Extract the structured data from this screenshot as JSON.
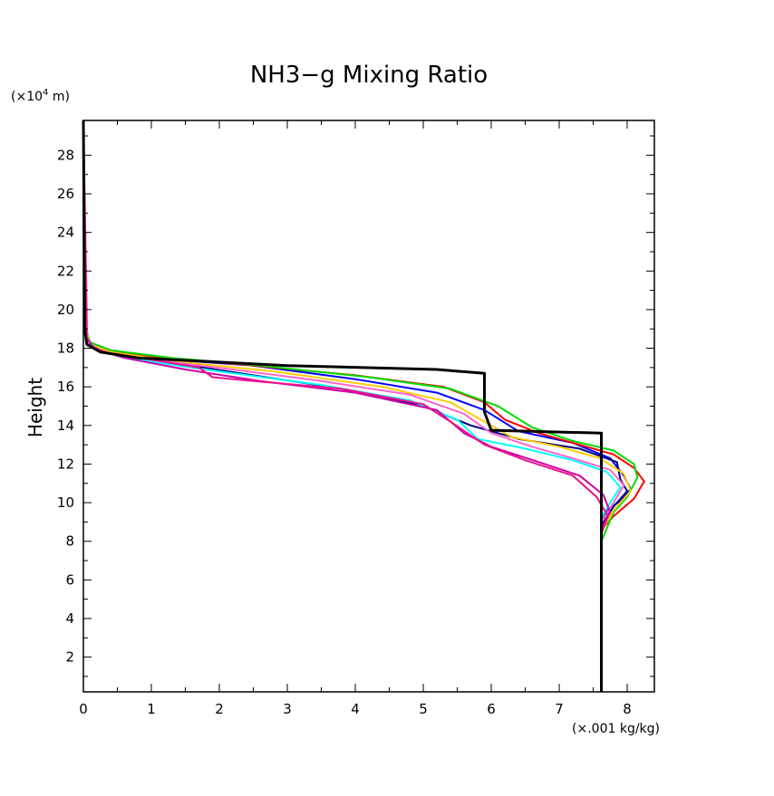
{
  "chart_data": {
    "type": "line",
    "title": "NH3−g Mixing Ratio",
    "ylabel": "Height",
    "y_unit_prefix": "(×10",
    "y_unit_exp": "4",
    "y_unit_suffix": " m)",
    "x_unit_label": "(×.001 kg/kg)",
    "xlim": [
      0,
      8.4
    ],
    "ylim": [
      0.2,
      29.8
    ],
    "x_ticks": [
      0,
      1,
      2,
      3,
      4,
      5,
      6,
      7,
      8
    ],
    "x_tick_labels": [
      "0",
      "1",
      "2",
      "3",
      "4",
      "5",
      "6",
      "7",
      "8"
    ],
    "y_ticks": [
      2,
      4,
      6,
      8,
      10,
      12,
      14,
      16,
      18,
      20,
      22,
      24,
      26,
      28
    ],
    "y_tick_labels": [
      "2",
      "4",
      "6",
      "8",
      "10",
      "12",
      "14",
      "16",
      "18",
      "20",
      "22",
      "24",
      "26",
      "28"
    ],
    "grid": false,
    "legend": "none",
    "series": [
      {
        "color": "#000000",
        "width": 3,
        "points": [
          [
            7.62,
            0.2
          ],
          [
            7.62,
            8.0
          ],
          [
            7.62,
            13.6
          ],
          [
            6.0,
            13.75
          ],
          [
            5.9,
            14.7
          ],
          [
            5.9,
            16.7
          ],
          [
            5.2,
            16.9
          ],
          [
            3.0,
            17.1
          ],
          [
            0.8,
            17.5
          ],
          [
            0.25,
            17.8
          ],
          [
            0.05,
            18.2
          ],
          [
            0.02,
            19.0
          ],
          [
            0.0,
            29.8
          ]
        ]
      },
      {
        "color": "#0000ff",
        "width": 2,
        "points": [
          [
            7.62,
            0.2
          ],
          [
            7.62,
            9.0
          ],
          [
            7.7,
            9.6
          ],
          [
            7.9,
            10.1
          ],
          [
            8.05,
            10.7
          ],
          [
            7.95,
            11.4
          ],
          [
            7.75,
            12.3
          ],
          [
            7.2,
            13.1
          ],
          [
            6.4,
            13.7
          ],
          [
            5.9,
            14.8
          ],
          [
            5.2,
            15.7
          ],
          [
            4.0,
            16.4
          ],
          [
            2.5,
            17.1
          ],
          [
            1.3,
            17.4
          ],
          [
            0.4,
            17.8
          ],
          [
            0.1,
            18.2
          ],
          [
            0.02,
            19.0
          ],
          [
            0.0,
            29.8
          ]
        ]
      },
      {
        "color": "#000080",
        "width": 2,
        "points": [
          [
            7.62,
            0.2
          ],
          [
            7.62,
            8.8
          ],
          [
            7.8,
            9.8
          ],
          [
            8.0,
            10.6
          ],
          [
            7.9,
            11.2
          ],
          [
            7.85,
            12.1
          ],
          [
            7.3,
            12.8
          ],
          [
            6.4,
            13.3
          ],
          [
            5.7,
            14.0
          ],
          [
            5.0,
            15.0
          ],
          [
            3.8,
            15.9
          ],
          [
            2.5,
            16.6
          ],
          [
            1.2,
            17.3
          ],
          [
            0.4,
            17.8
          ],
          [
            0.08,
            18.3
          ],
          [
            0.01,
            19.2
          ],
          [
            0.0,
            29.8
          ]
        ]
      },
      {
        "color": "#ff0000",
        "width": 2,
        "points": [
          [
            7.62,
            0.2
          ],
          [
            7.62,
            8.6
          ],
          [
            7.8,
            9.3
          ],
          [
            8.1,
            10.2
          ],
          [
            8.25,
            11.1
          ],
          [
            8.1,
            11.8
          ],
          [
            7.8,
            12.5
          ],
          [
            7.3,
            13.0
          ],
          [
            6.7,
            13.6
          ],
          [
            6.2,
            14.3
          ],
          [
            5.9,
            15.2
          ],
          [
            5.3,
            16.0
          ],
          [
            4.0,
            16.6
          ],
          [
            2.5,
            17.1
          ],
          [
            1.2,
            17.5
          ],
          [
            0.4,
            17.9
          ],
          [
            0.1,
            18.3
          ],
          [
            0.02,
            19.0
          ],
          [
            0.0,
            29.8
          ]
        ]
      },
      {
        "color": "#00dd00",
        "width": 2,
        "points": [
          [
            7.62,
            0.2
          ],
          [
            7.62,
            8.0
          ],
          [
            7.8,
            9.5
          ],
          [
            8.0,
            10.3
          ],
          [
            8.15,
            11.3
          ],
          [
            8.1,
            12.0
          ],
          [
            7.8,
            12.7
          ],
          [
            7.2,
            13.2
          ],
          [
            6.6,
            13.9
          ],
          [
            6.1,
            15.0
          ],
          [
            5.4,
            15.9
          ],
          [
            4.2,
            16.5
          ],
          [
            2.6,
            17.1
          ],
          [
            1.3,
            17.5
          ],
          [
            0.4,
            17.9
          ],
          [
            0.1,
            18.3
          ],
          [
            0.02,
            19.2
          ],
          [
            0.0,
            29.8
          ]
        ]
      },
      {
        "color": "#ffcc00",
        "width": 2,
        "points": [
          [
            7.62,
            0.2
          ],
          [
            7.62,
            8.5
          ],
          [
            7.8,
            9.6
          ],
          [
            8.05,
            10.6
          ],
          [
            7.95,
            11.5
          ],
          [
            7.6,
            12.3
          ],
          [
            7.0,
            12.9
          ],
          [
            6.3,
            13.4
          ],
          [
            5.9,
            14.2
          ],
          [
            5.4,
            15.2
          ],
          [
            4.4,
            16.0
          ],
          [
            2.8,
            16.8
          ],
          [
            1.4,
            17.3
          ],
          [
            0.4,
            17.8
          ],
          [
            0.1,
            18.2
          ],
          [
            0.02,
            19.1
          ],
          [
            0.0,
            29.8
          ]
        ]
      },
      {
        "color": "#00ffff",
        "width": 2,
        "points": [
          [
            7.62,
            0.2
          ],
          [
            7.62,
            9.2
          ],
          [
            7.75,
            10.0
          ],
          [
            7.9,
            10.8
          ],
          [
            7.7,
            11.6
          ],
          [
            7.2,
            12.2
          ],
          [
            6.5,
            12.8
          ],
          [
            5.8,
            13.3
          ],
          [
            5.5,
            14.3
          ],
          [
            4.8,
            15.3
          ],
          [
            3.5,
            16.1
          ],
          [
            2.0,
            16.8
          ],
          [
            1.0,
            17.3
          ],
          [
            0.3,
            17.8
          ],
          [
            0.06,
            18.3
          ],
          [
            0.01,
            19.2
          ],
          [
            0.0,
            29.8
          ]
        ]
      },
      {
        "color": "#ff66cc",
        "width": 2,
        "points": [
          [
            7.62,
            0.2
          ],
          [
            7.62,
            9.0
          ],
          [
            7.8,
            10.0
          ],
          [
            7.95,
            10.9
          ],
          [
            7.75,
            11.7
          ],
          [
            7.2,
            12.3
          ],
          [
            6.6,
            12.9
          ],
          [
            6.0,
            13.6
          ],
          [
            5.6,
            14.6
          ],
          [
            4.8,
            15.6
          ],
          [
            3.5,
            16.3
          ],
          [
            2.2,
            16.9
          ],
          [
            1.0,
            17.4
          ],
          [
            0.3,
            17.8
          ],
          [
            0.06,
            18.3
          ],
          [
            0.0,
            29.8
          ]
        ]
      },
      {
        "color": "#cc00aa",
        "width": 2,
        "points": [
          [
            7.62,
            0.2
          ],
          [
            7.62,
            8.6
          ],
          [
            7.75,
            9.5
          ],
          [
            7.65,
            10.4
          ],
          [
            7.3,
            11.4
          ],
          [
            6.7,
            12.1
          ],
          [
            6.0,
            12.9
          ],
          [
            5.6,
            13.6
          ],
          [
            5.2,
            14.8
          ],
          [
            4.0,
            15.7
          ],
          [
            2.6,
            16.3
          ],
          [
            1.5,
            16.9
          ],
          [
            0.6,
            17.5
          ],
          [
            0.15,
            18.0
          ],
          [
            0.02,
            18.7
          ],
          [
            0.0,
            29.8
          ]
        ]
      },
      {
        "color": "#ee1188",
        "width": 2,
        "points": [
          [
            7.62,
            0.2
          ],
          [
            7.62,
            8.4
          ],
          [
            7.72,
            9.3
          ],
          [
            7.55,
            10.3
          ],
          [
            7.2,
            11.4
          ],
          [
            6.5,
            12.2
          ],
          [
            5.9,
            13.0
          ],
          [
            5.4,
            14.2
          ],
          [
            5.0,
            15.1
          ],
          [
            3.8,
            15.9
          ],
          [
            2.5,
            16.3
          ],
          [
            1.9,
            16.5
          ],
          [
            1.7,
            17.0
          ],
          [
            1.0,
            17.4
          ],
          [
            0.3,
            17.8
          ],
          [
            0.05,
            18.2
          ],
          [
            0.0,
            29.8
          ]
        ]
      }
    ]
  }
}
